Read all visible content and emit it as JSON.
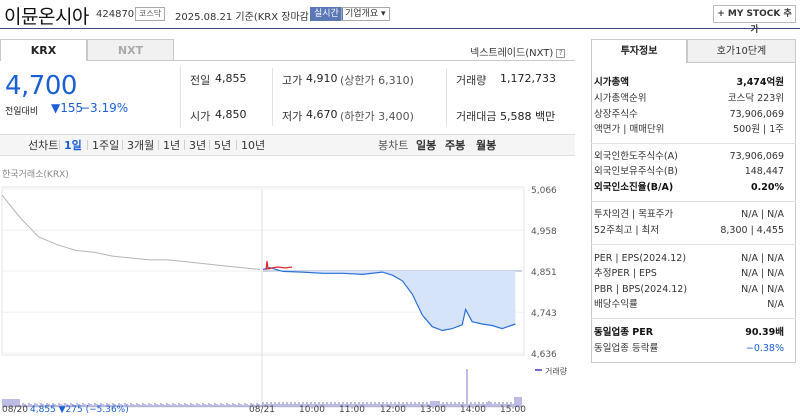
{
  "header": {
    "name": "이뮨온시아",
    "code": "424870",
    "market_badge": "코스닥",
    "date": "2025.08.21  기준(KRX 장마감)",
    "realtime": "실시간",
    "overview": "기업개요 ▾",
    "mystock": "+ MY STOCK 추가"
  },
  "tabs": {
    "krx": "KRX",
    "nxt": "NXT",
    "nextrade": "넥스트레이드(NXT)"
  },
  "quote": {
    "price": "4,700",
    "change_label": "전일대비",
    "change_value": "▼155",
    "change_pct": "−3.19%",
    "prev_close_label": "전일",
    "prev_close": "4,855",
    "open_label": "시가",
    "open": "4,850",
    "high_label": "고가",
    "high": "4,910",
    "upper_limit": "(상한가 6,310)",
    "low_label": "저가",
    "low": "4,670",
    "lower_limit": "(하한가 3,400)",
    "volume_label": "거래량",
    "volume": "1,172,733",
    "amount_label": "거래대금",
    "amount": "5,588 백만"
  },
  "periods": [
    "선차트",
    "1일",
    "1주일",
    "3개월",
    "1년",
    "3년",
    "5년",
    "10년"
  ],
  "selected_period": "1일",
  "candle_label": "봉차트",
  "candles": [
    "일봉",
    "주봉",
    "월봉"
  ],
  "source": "한국거래소(KRX)",
  "chart_data": {
    "type": "line",
    "title": "",
    "x_ticks": [
      "08/20",
      "08/21",
      "10:00",
      "11:00",
      "12:00",
      "13:00",
      "14:00",
      "15:00"
    ],
    "y_ticks": [
      5066,
      4958,
      4851,
      4743,
      4636
    ],
    "ylim": [
      4636,
      5066
    ],
    "reference_price": 4851,
    "volume_legend": "거래량",
    "prev_day_summary": "4,855 ▼275 (−5.36%)",
    "series": [
      {
        "name": "08/20",
        "x": [
          "08/20 09:00",
          "09:10",
          "09:30",
          "10:00",
          "10:30",
          "11:00",
          "11:30",
          "12:00",
          "12:30",
          "13:00",
          "13:30",
          "14:00",
          "14:30",
          "15:00",
          "15:30"
        ],
        "values": [
          5050,
          4990,
          4940,
          4920,
          4905,
          4900,
          4890,
          4885,
          4880,
          4880,
          4875,
          4870,
          4865,
          4860,
          4855
        ]
      },
      {
        "name": "08/21",
        "x": [
          "09:00",
          "09:10",
          "09:30",
          "10:00",
          "10:30",
          "11:00",
          "11:30",
          "12:00",
          "12:15",
          "12:30",
          "12:45",
          "13:00",
          "13:15",
          "13:30",
          "13:45",
          "14:00",
          "14:05",
          "14:15",
          "14:30",
          "14:45",
          "15:00",
          "15:20"
        ],
        "values": [
          4855,
          4860,
          4850,
          4848,
          4845,
          4845,
          4842,
          4848,
          4840,
          4825,
          4790,
          4735,
          4705,
          4695,
          4700,
          4710,
          4750,
          4718,
          4712,
          4708,
          4700,
          4712
        ]
      }
    ]
  },
  "invest": {
    "tab_invest": "투자정보",
    "tab_order": "호가10단계",
    "rows": [
      {
        "k": "시가총액",
        "v": "3,474억원",
        "bold": true
      },
      {
        "k": "시가총액순위",
        "v": "코스닥 223위"
      },
      {
        "k": "상장주식수",
        "v": "73,906,069"
      },
      {
        "k": "액면가 | 매매단위",
        "v": "500원 | 1주"
      },
      {
        "k": "외국인한도주식수(A)",
        "v": "73,906,069"
      },
      {
        "k": "외국인보유주식수(B)",
        "v": "148,447"
      },
      {
        "k": "외국인소진율(B/A)",
        "v": "0.20%",
        "bold": true
      },
      {
        "k": "투자의견 | 목표주가",
        "v": "N/A | N/A"
      },
      {
        "k": "52주최고 | 최저",
        "v": "8,300 | 4,455"
      },
      {
        "k": "PER | EPS(2024.12)",
        "v": "N/A | N/A"
      },
      {
        "k": "추정PER | EPS",
        "v": "N/A | N/A"
      },
      {
        "k": "PBR | BPS(2024.12)",
        "v": "N/A | N/A"
      },
      {
        "k": "배당수익률",
        "v": "N/A"
      },
      {
        "k": "동일업종 PER",
        "v": "90.39배",
        "bold": true
      },
      {
        "k": "동일업종 등락률",
        "v": "−0.38%",
        "blue": true
      }
    ]
  }
}
